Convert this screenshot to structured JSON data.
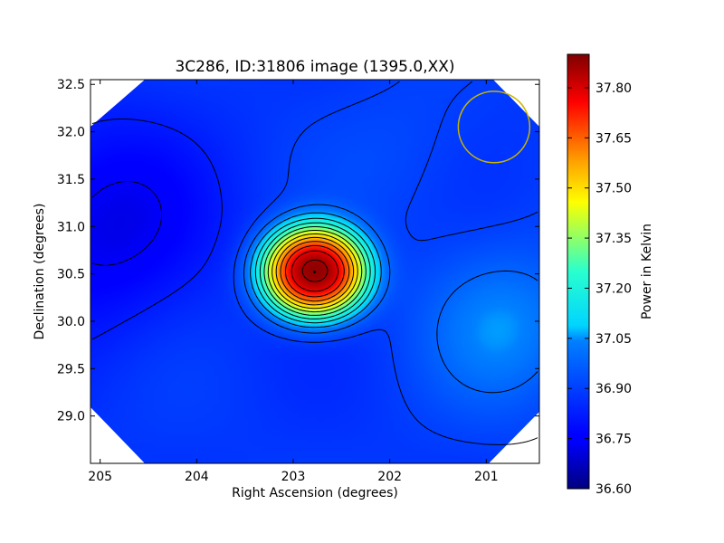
{
  "chart_data": {
    "type": "heatmap",
    "title": "3C286, ID:31806 image (1395.0,XX)",
    "xlabel": "Right Ascension (degrees)",
    "ylabel": "Declination (degrees)",
    "xlim": [
      205.1,
      200.45
    ],
    "ylim": [
      28.5,
      32.55
    ],
    "x_ticks": [
      205,
      204,
      203,
      202,
      201
    ],
    "y_ticks": [
      29.0,
      29.5,
      30.0,
      30.5,
      31.0,
      31.5,
      32.0,
      32.5
    ],
    "colorbar": {
      "label": "Power in Kelvin",
      "range": [
        36.6,
        37.9
      ],
      "ticks": [
        36.6,
        36.75,
        36.9,
        37.05,
        37.2,
        37.35,
        37.5,
        37.65,
        37.8
      ],
      "colormap": "jet"
    },
    "source": {
      "ra": 202.78,
      "dec": 30.52,
      "peak": 37.88
    },
    "background_level": 36.88,
    "features": [
      {
        "ra": 205.0,
        "dec": 31.0,
        "delta": -0.16,
        "sigma": 0.8
      },
      {
        "ra": 200.8,
        "dec": 29.95,
        "delta": 0.16,
        "sigma": 0.6
      },
      {
        "ra": 201.8,
        "dec": 31.8,
        "delta": 0.04,
        "sigma": 0.6
      }
    ],
    "beam_circle": {
      "ra": 200.92,
      "dec": 32.05,
      "radius_deg": 0.37,
      "color": "#c8b400"
    },
    "grid": false,
    "contour_color": "#000000"
  }
}
